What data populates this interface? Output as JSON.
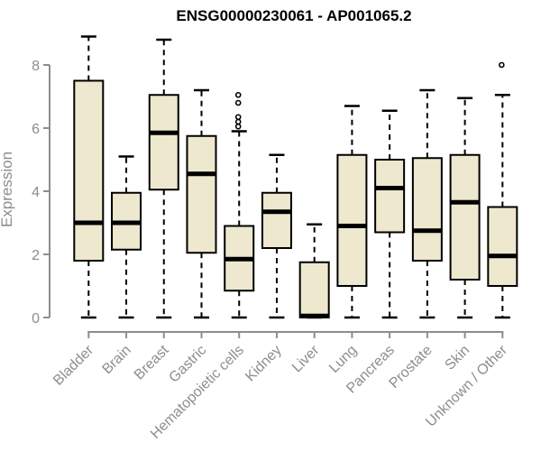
{
  "chart_data": {
    "type": "boxplot",
    "title": "ENSG00000230061 - AP001065.2",
    "ylabel": "Expression",
    "xlabel": "",
    "yticks": [
      0,
      2,
      4,
      6,
      8
    ],
    "ylim": [
      0,
      9.1
    ],
    "grid": false,
    "legend": "none",
    "categories": [
      "Bladder",
      "Brain",
      "Breast",
      "Gastric",
      "Hematopoietic cells",
      "Kidney",
      "Liver",
      "Lung",
      "Pancreas",
      "Prostate",
      "Skin",
      "Unknown / Other"
    ],
    "boxes": [
      {
        "category": "Bladder",
        "whisker_low": 0,
        "q1": 1.8,
        "median": 3.0,
        "q3": 7.5,
        "whisker_high": 8.9,
        "outliers": []
      },
      {
        "category": "Brain",
        "whisker_low": 0,
        "q1": 2.15,
        "median": 3.0,
        "q3": 3.95,
        "whisker_high": 5.1,
        "outliers": []
      },
      {
        "category": "Breast",
        "whisker_low": 0,
        "q1": 4.05,
        "median": 5.85,
        "q3": 7.05,
        "whisker_high": 8.8,
        "outliers": []
      },
      {
        "category": "Gastric",
        "whisker_low": 0,
        "q1": 2.05,
        "median": 4.55,
        "q3": 5.75,
        "whisker_high": 7.2,
        "outliers": []
      },
      {
        "category": "Hematopoietic cells",
        "whisker_low": 0,
        "q1": 0.85,
        "median": 1.85,
        "q3": 2.9,
        "whisker_high": 5.9,
        "outliers": [
          6.05,
          6.2,
          6.35,
          6.8,
          7.05
        ]
      },
      {
        "category": "Kidney",
        "whisker_low": 0,
        "q1": 2.2,
        "median": 3.35,
        "q3": 3.95,
        "whisker_high": 5.15,
        "outliers": []
      },
      {
        "category": "Liver",
        "whisker_low": 0,
        "q1": 0,
        "median": 0.05,
        "q3": 1.75,
        "whisker_high": 2.95,
        "outliers": []
      },
      {
        "category": "Lung",
        "whisker_low": 0,
        "q1": 1.0,
        "median": 2.9,
        "q3": 5.15,
        "whisker_high": 6.7,
        "outliers": []
      },
      {
        "category": "Pancreas",
        "whisker_low": 0,
        "q1": 2.7,
        "median": 4.1,
        "q3": 5.0,
        "whisker_high": 6.55,
        "outliers": []
      },
      {
        "category": "Prostate",
        "whisker_low": 0,
        "q1": 1.8,
        "median": 2.75,
        "q3": 5.05,
        "whisker_high": 7.2,
        "outliers": []
      },
      {
        "category": "Skin",
        "whisker_low": 0,
        "q1": 1.2,
        "median": 3.65,
        "q3": 5.15,
        "whisker_high": 6.95,
        "outliers": []
      },
      {
        "category": "Unknown / Other",
        "whisker_low": 0,
        "q1": 1.0,
        "median": 1.95,
        "q3": 3.5,
        "whisker_high": 7.05,
        "outliers": [
          8.0
        ]
      }
    ],
    "colors": {
      "box_fill": "#EDE8CE",
      "box_border": "#000000",
      "median": "#000000",
      "whisker": "#000000",
      "outlier": "#000000",
      "axis": "#8D8D8D",
      "tick_label": "#8D8D8D",
      "title": "#000000",
      "background": "#FFFFFF"
    }
  }
}
